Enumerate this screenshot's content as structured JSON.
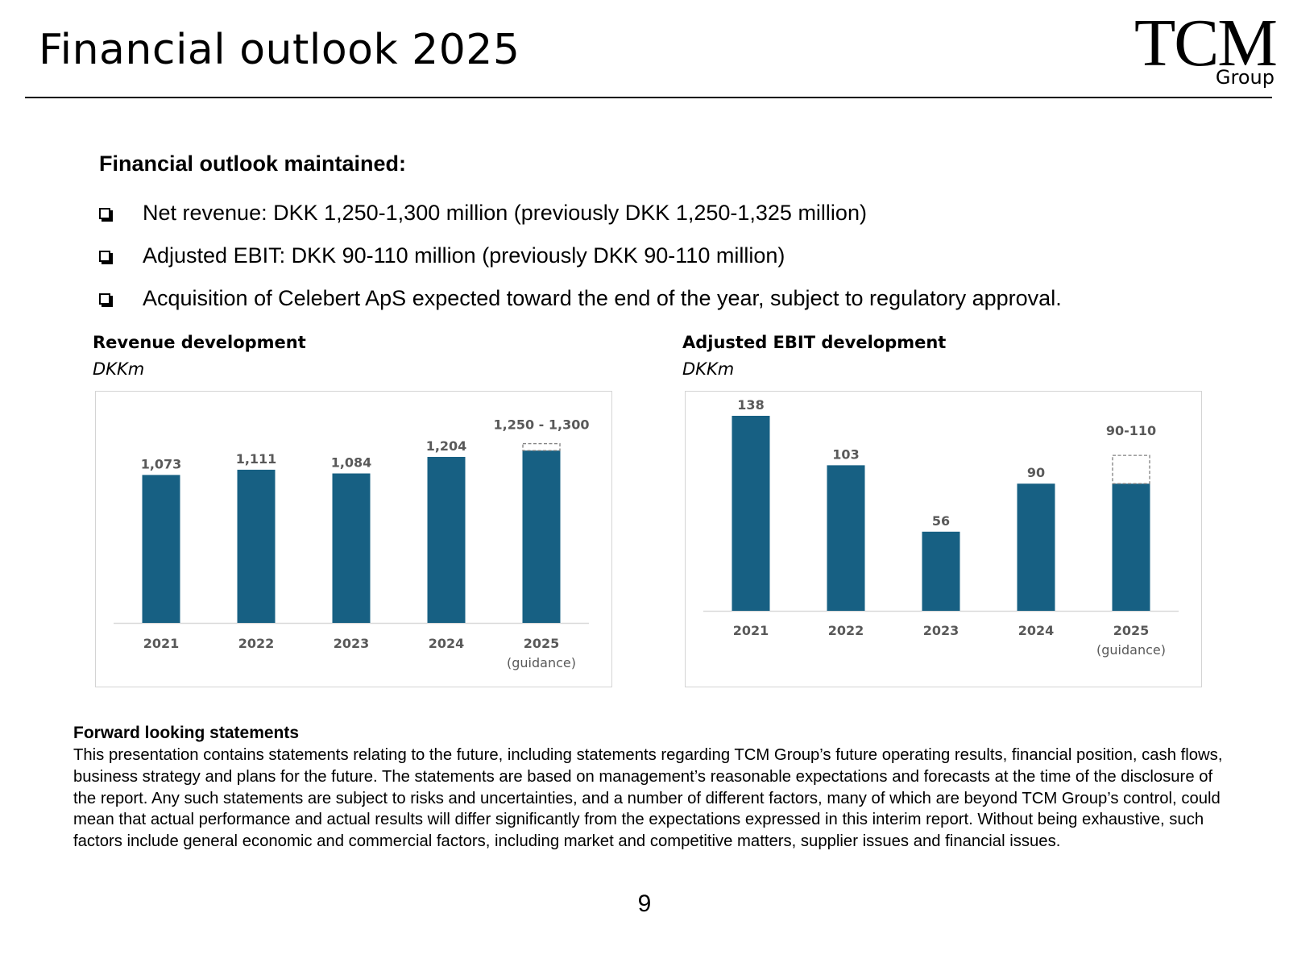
{
  "page": {
    "title": "Financial outlook 2025",
    "logo": {
      "main": "TCM",
      "sub": "Group"
    },
    "page_number": "9"
  },
  "outlook": {
    "heading": "Financial outlook maintained:",
    "bullets": [
      "Net revenue: DKK 1,250-1,300 million (previously DKK 1,250-1,325 million)",
      "Adjusted EBIT: DKK 90-110 million (previously DKK 90-110 million)",
      "Acquisition of Celebert ApS expected toward the end of the year, subject to regulatory approval."
    ]
  },
  "colors": {
    "bar": "#176083",
    "label": "#595959",
    "guidance_border": "#808080",
    "axis": "#d9d9d9"
  },
  "chart_data": [
    {
      "type": "bar",
      "title": "Revenue development",
      "unit": "DKKm",
      "categories": [
        "2021",
        "2022",
        "2023",
        "2024",
        "2025"
      ],
      "category_sublabels": [
        "",
        "",
        "",
        "",
        "(guidance)"
      ],
      "values": [
        1073,
        1111,
        1084,
        1204,
        1250
      ],
      "data_labels": [
        "1,073",
        "1,111",
        "1,084",
        "1,204",
        "1,250 - 1,300"
      ],
      "guidance": {
        "index": 4,
        "low": 1250,
        "high": 1300
      },
      "ylim": [
        0,
        1350
      ],
      "legend": "none",
      "grid": false
    },
    {
      "type": "bar",
      "title": "Adjusted EBIT development",
      "unit": "DKKm",
      "categories": [
        "2021",
        "2022",
        "2023",
        "2024",
        "2025"
      ],
      "category_sublabels": [
        "",
        "",
        "",
        "",
        "(guidance)"
      ],
      "values": [
        138,
        103,
        56,
        90,
        90
      ],
      "data_labels": [
        "138",
        "103",
        "56",
        "90",
        "90-110"
      ],
      "guidance": {
        "index": 4,
        "low": 90,
        "high": 110
      },
      "ylim": [
        0,
        138
      ],
      "legend": "none",
      "grid": false
    }
  ],
  "forward_looking": {
    "heading": "Forward looking statements",
    "body": "This presentation contains statements relating to the future, including statements regarding TCM Group’s future operating results, financial position, cash flows, business strategy and plans for the future. The statements are based on management’s reasonable expectations and forecasts at the time of the disclosure of the report. Any such statements are subject to risks and uncertainties, and a number of different factors, many of which are beyond TCM Group’s control, could mean that actual performance and actual results will differ significantly from the expectations expressed in this interim report. Without being exhaustive, such factors include general economic and commercial factors, including market and competitive matters, supplier issues and financial issues."
  }
}
